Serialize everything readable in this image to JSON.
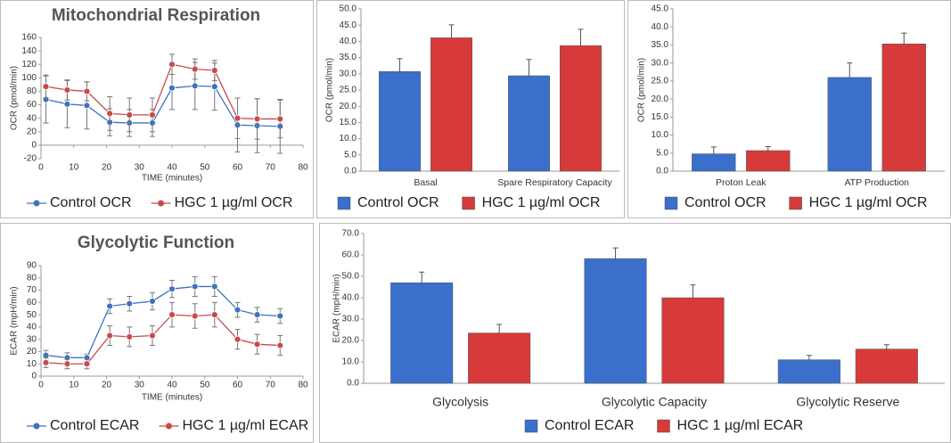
{
  "chart_data": [
    {
      "type": "line",
      "title": "Mitochondrial Respiration",
      "x_label": "TIME (minutes)",
      "y_label": "OCR (pmol/min)",
      "x": [
        1.5,
        8,
        14,
        21,
        27,
        34,
        40,
        47,
        53,
        60,
        66,
        73
      ],
      "xlim": [
        0,
        80
      ],
      "xticks": [
        0,
        10,
        20,
        30,
        40,
        50,
        60,
        70,
        80
      ],
      "ylim": [
        -20,
        160
      ],
      "yticks": [
        -20,
        0,
        20,
        40,
        60,
        80,
        100,
        120,
        140,
        160
      ],
      "series": [
        {
          "name": "Control OCR",
          "color": "#3f72c0",
          "values": [
            68,
            61,
            59,
            34,
            33,
            33,
            85,
            88,
            87,
            30,
            29,
            28
          ],
          "errors": [
            35,
            35,
            35,
            20,
            20,
            20,
            32,
            35,
            35,
            40,
            40,
            40
          ]
        },
        {
          "name": "HGC 1 µg/ml OCR",
          "color": "#c94a4a",
          "values": [
            87,
            82,
            80,
            47,
            45,
            45,
            120,
            113,
            111,
            40,
            39,
            39
          ],
          "errors": [
            17,
            15,
            14,
            25,
            25,
            25,
            15,
            15,
            15,
            30,
            30,
            28
          ]
        }
      ]
    },
    {
      "type": "bar",
      "y_label": "OCR (pmol/min)",
      "categories": [
        "Basal",
        "Spare Respiratory Capacity"
      ],
      "ylim": [
        0,
        50
      ],
      "yticks": [
        {
          "value": 0,
          "label": "0.0"
        },
        {
          "value": 5,
          "label": "5.0"
        },
        {
          "value": 10,
          "label": "10.0"
        },
        {
          "value": 15,
          "label": "15.0"
        },
        {
          "value": 20,
          "label": "20.0"
        },
        {
          "value": 25,
          "label": "25.0"
        },
        {
          "value": 30,
          "label": "30.0"
        },
        {
          "value": 35,
          "label": "35.0"
        },
        {
          "value": 40,
          "label": "40.0"
        },
        {
          "value": 45,
          "label": "45.0"
        },
        {
          "value": 50,
          "label": "50.0"
        }
      ],
      "series": [
        {
          "name": "Control OCR",
          "color": "#3a6fcc",
          "values": [
            30.7,
            29.4
          ],
          "errors": [
            4,
            5
          ]
        },
        {
          "name": "HGC 1 µg/ml OCR",
          "color": "#d63a3a",
          "values": [
            41.1,
            38.7
          ],
          "errors": [
            4,
            5
          ]
        }
      ]
    },
    {
      "type": "bar",
      "y_label": "OCR (pmol/min)",
      "categories": [
        "Proton Leak",
        "ATP Production"
      ],
      "ylim": [
        0,
        45
      ],
      "yticks": [
        {
          "value": 0,
          "label": "0.0"
        },
        {
          "value": 5,
          "label": "5.0"
        },
        {
          "value": 10,
          "label": "10.0"
        },
        {
          "value": 15,
          "label": "15.0"
        },
        {
          "value": 20,
          "label": "20.0"
        },
        {
          "value": 25,
          "label": "25.0"
        },
        {
          "value": 30,
          "label": "30.0"
        },
        {
          "value": 35,
          "label": "35.0"
        },
        {
          "value": 40,
          "label": "40.0"
        },
        {
          "value": 45,
          "label": "45.0"
        }
      ],
      "series": [
        {
          "name": "Control OCR",
          "color": "#3a6fcc",
          "values": [
            4.8,
            26.0
          ],
          "errors": [
            1.9,
            4
          ]
        },
        {
          "name": "HGC 1 µg/ml OCR",
          "color": "#d63a3a",
          "values": [
            5.7,
            35.3
          ],
          "errors": [
            1.1,
            3
          ]
        }
      ]
    },
    {
      "type": "line",
      "title": "Glycolytic Function",
      "x_label": "TIME (minutes)",
      "y_label": "ECAR (mpH/min)",
      "x": [
        1.5,
        8,
        14,
        21,
        27,
        34,
        40,
        47,
        53,
        60,
        66,
        73
      ],
      "xlim": [
        0,
        80
      ],
      "xticks": [
        0,
        10,
        20,
        30,
        40,
        50,
        60,
        70,
        80
      ],
      "ylim": [
        0,
        90
      ],
      "yticks": [
        0,
        10,
        20,
        30,
        40,
        50,
        60,
        70,
        80,
        90
      ],
      "series": [
        {
          "name": "Control ECAR",
          "color": "#3f72c0",
          "values": [
            17,
            15,
            15,
            57,
            59,
            61,
            71,
            73,
            73,
            54,
            50,
            49
          ],
          "errors": [
            4,
            4,
            3,
            6,
            6,
            7,
            7,
            8,
            8,
            6,
            6,
            6
          ]
        },
        {
          "name": "HGC 1 µg/ml ECAR",
          "color": "#c94a4a",
          "values": [
            11,
            10,
            10,
            33,
            32,
            33,
            50,
            49,
            50,
            30,
            26,
            25
          ],
          "errors": [
            4,
            4,
            4,
            8,
            8,
            8,
            10,
            10,
            10,
            8,
            8,
            8
          ]
        }
      ]
    },
    {
      "type": "bar",
      "y_label": "ECAR (mpH/min)",
      "categories": [
        "Glycolysis",
        "Glycolytic Capacity",
        "Glycolytic Reserve"
      ],
      "ylim": [
        0,
        70
      ],
      "yticks": [
        {
          "value": 0,
          "label": "0.0"
        },
        {
          "value": 10,
          "label": "10.0"
        },
        {
          "value": 20,
          "label": "20.0"
        },
        {
          "value": 30,
          "label": "30.0"
        },
        {
          "value": 40,
          "label": "40.0"
        },
        {
          "value": 50,
          "label": "50.0"
        },
        {
          "value": 60,
          "label": "60.0"
        },
        {
          "value": 70,
          "label": "70.0"
        }
      ],
      "series": [
        {
          "name": "Control ECAR",
          "color": "#3a6fcc",
          "values": [
            47,
            58.3,
            11
          ],
          "errors": [
            5,
            5,
            2
          ]
        },
        {
          "name": "HGC 1 µg/ml ECAR",
          "color": "#d63a3a",
          "values": [
            23.5,
            40,
            16
          ],
          "errors": [
            4,
            6,
            2
          ]
        }
      ]
    }
  ]
}
